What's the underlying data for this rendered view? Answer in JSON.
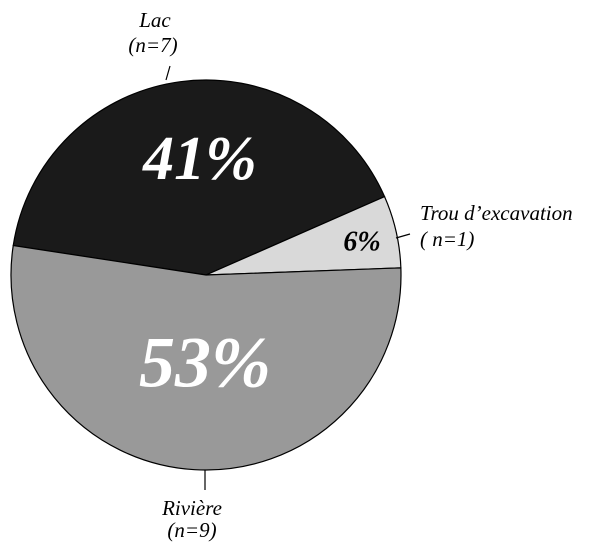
{
  "chart_data": {
    "type": "pie",
    "categories": [
      "Lac",
      "Trou d’excavation",
      "Rivière"
    ],
    "counts": [
      "(n=7)",
      "( n=1)",
      "(n=9)"
    ],
    "values": [
      41,
      6,
      53
    ],
    "value_labels": [
      "41%",
      "6%",
      "53%"
    ],
    "colors": [
      "#1a1a1a",
      "#d9d9d9",
      "#999999"
    ],
    "label_colors": [
      "#ffffff",
      "#000000",
      "#ffffff"
    ]
  }
}
